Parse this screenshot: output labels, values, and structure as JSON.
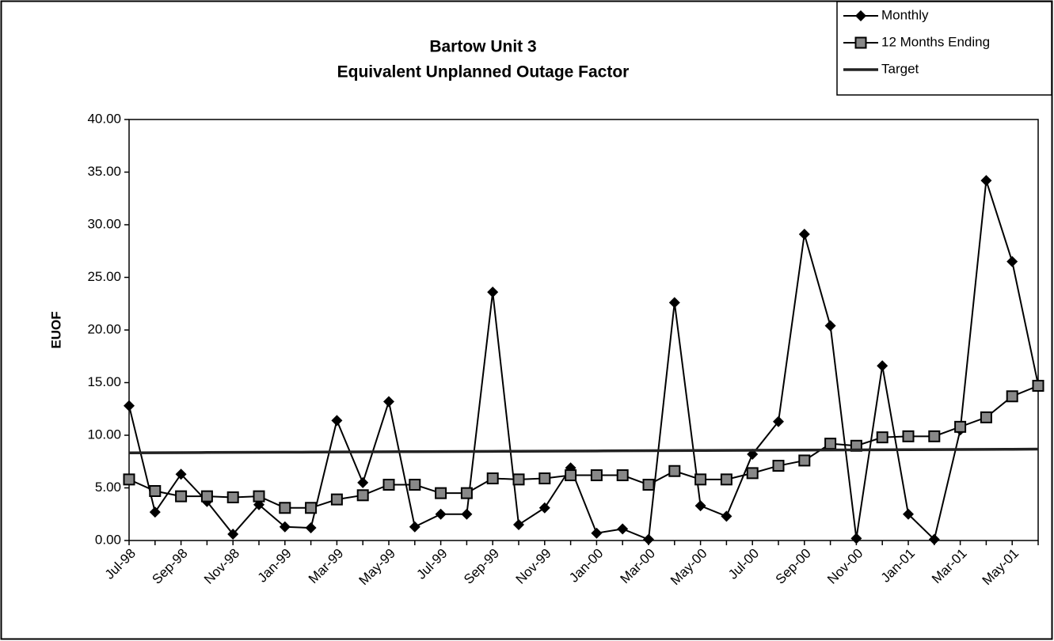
{
  "chart_data": {
    "type": "line",
    "title": [
      "Bartow Unit 3",
      "Equivalent Unplanned Outage Factor"
    ],
    "ylabel": "EUOF",
    "categories": [
      "Jul-98",
      null,
      "Sep-98",
      null,
      "Nov-98",
      null,
      "Jan-99",
      null,
      "Mar-99",
      null,
      "May-99",
      null,
      "Jul-99",
      null,
      "Sep-99",
      null,
      "Nov-99",
      null,
      "Jan-00",
      null,
      "Mar-00",
      null,
      "May-00",
      null,
      "Jul-00",
      null,
      "Sep-00",
      null,
      "Nov-00",
      null,
      "Jan-01",
      null,
      "Mar-01",
      null,
      "May-01",
      null
    ],
    "series": [
      {
        "name": "Monthly",
        "color": "#000000",
        "marker": "diamond",
        "values": [
          12.8,
          2.7,
          6.3,
          3.7,
          0.6,
          3.4,
          1.3,
          1.2,
          11.4,
          5.5,
          13.2,
          1.3,
          2.5,
          2.5,
          23.6,
          1.5,
          3.1,
          6.9,
          0.7,
          1.1,
          0.1,
          22.6,
          3.3,
          2.3,
          8.2,
          11.3,
          29.1,
          20.4,
          0.2,
          16.6,
          2.5,
          0.1,
          10.5,
          34.2,
          26.5,
          14.8
        ]
      },
      {
        "name": "12 Months Ending",
        "color": "#000000",
        "marker": "square",
        "values": [
          5.8,
          4.7,
          4.2,
          4.2,
          4.1,
          4.2,
          3.1,
          3.1,
          3.9,
          4.3,
          5.3,
          5.3,
          4.5,
          4.5,
          5.9,
          5.8,
          5.9,
          6.2,
          6.2,
          6.2,
          5.3,
          6.6,
          5.8,
          5.8,
          6.4,
          7.1,
          7.6,
          9.2,
          9.0,
          9.8,
          9.9,
          9.9,
          10.8,
          11.7,
          13.7,
          14.7
        ]
      },
      {
        "name": "Target",
        "color": "#222222",
        "marker": "none",
        "values": [
          8.33,
          8.34,
          8.35,
          8.36,
          8.37,
          8.38,
          8.39,
          8.4,
          8.41,
          8.42,
          8.43,
          8.44,
          8.45,
          8.46,
          8.47,
          8.48,
          8.49,
          8.5,
          8.51,
          8.52,
          8.53,
          8.54,
          8.55,
          8.56,
          8.57,
          8.58,
          8.59,
          8.6,
          8.61,
          8.62,
          8.63,
          8.64,
          8.65,
          8.66,
          8.67,
          8.68
        ]
      }
    ],
    "ylim": [
      0,
      40
    ],
    "yticks": [
      {
        "value": 0,
        "label": "0.00"
      },
      {
        "value": 5,
        "label": "5.00"
      },
      {
        "value": 10,
        "label": "10.00"
      },
      {
        "value": 15,
        "label": "15.00"
      },
      {
        "value": 20,
        "label": "20.00"
      },
      {
        "value": 25,
        "label": "25.00"
      },
      {
        "value": 30,
        "label": "30.00"
      },
      {
        "value": 35,
        "label": "35.00"
      },
      {
        "value": 40,
        "label": "40.00"
      }
    ],
    "grid": false,
    "legend": "top-right"
  }
}
